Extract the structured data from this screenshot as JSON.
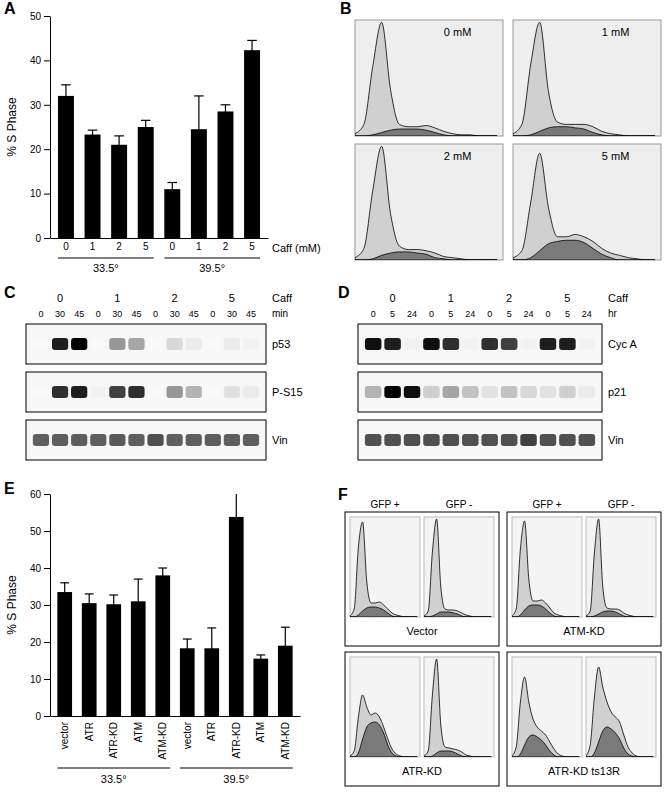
{
  "chart_data": [
    {
      "title": "A",
      "type": "bar",
      "color": "#000000",
      "categories": [
        "0",
        "1",
        "2",
        "5",
        "0",
        "1",
        "2",
        "5"
      ],
      "values": [
        32,
        23.3,
        21,
        25,
        11,
        24.5,
        28.5,
        42.3
      ],
      "errors": [
        2.5,
        1,
        2,
        1.5,
        1.5,
        7.5,
        1.5,
        2.2
      ],
      "group_labels": [
        "33.5°",
        "39.5°"
      ],
      "xlabel": "Caff (mM)",
      "ylabel": "% S Phase",
      "ylim": [
        0,
        50
      ],
      "yticks": [
        0,
        10,
        20,
        30,
        40,
        50
      ]
    },
    {
      "title": "B",
      "type": "area",
      "tick_labels": false,
      "xlim": [
        0,
        100
      ],
      "ylim": [
        0,
        100
      ],
      "x": [
        0,
        6,
        12,
        18,
        24,
        30,
        36,
        42,
        48,
        54,
        60,
        66,
        72,
        78,
        84,
        90,
        96
      ],
      "panels": [
        {
          "label": "0 mM",
          "values": [
            2,
            10,
            60,
            98,
            40,
            10,
            8,
            8,
            9,
            7,
            4,
            2,
            1,
            1,
            0,
            0,
            0
          ],
          "s_phase": [
            0,
            0,
            1,
            3,
            5,
            6,
            6,
            6,
            5,
            3,
            1,
            0,
            0,
            0,
            0,
            0,
            0
          ]
        },
        {
          "label": "1 mM",
          "values": [
            2,
            10,
            62,
            98,
            38,
            12,
            10,
            10,
            10,
            8,
            4,
            2,
            1,
            0,
            0,
            0,
            0
          ],
          "s_phase": [
            0,
            0,
            1,
            4,
            7,
            8,
            8,
            7,
            6,
            3,
            1,
            0,
            0,
            0,
            0,
            0,
            0
          ]
        },
        {
          "label": "2 mM",
          "values": [
            2,
            10,
            60,
            98,
            40,
            12,
            9,
            9,
            8,
            6,
            3,
            2,
            1,
            0,
            0,
            0,
            0
          ],
          "s_phase": [
            0,
            0,
            1,
            4,
            6,
            7,
            7,
            6,
            5,
            2,
            1,
            0,
            0,
            0,
            0,
            0,
            0
          ]
        },
        {
          "label": "5 mM",
          "values": [
            2,
            8,
            50,
            92,
            45,
            20,
            20,
            22,
            20,
            16,
            10,
            6,
            4,
            2,
            1,
            0,
            0
          ],
          "s_phase": [
            0,
            0,
            2,
            8,
            14,
            16,
            17,
            17,
            15,
            10,
            5,
            2,
            0,
            0,
            0,
            0,
            0
          ]
        }
      ]
    },
    {
      "title": "C",
      "type": "blot",
      "treatment_label": "Caff",
      "time_label": "min",
      "groups": [
        "0",
        "1",
        "2",
        "5"
      ],
      "times": [
        0,
        30,
        45
      ],
      "intensity_range": [
        0,
        1
      ],
      "rows": [
        {
          "name": "p53",
          "values": [
            0.05,
            0.9,
            1.0,
            0.05,
            0.5,
            0.45,
            0.05,
            0.25,
            0.15,
            0.05,
            0.15,
            0.1
          ]
        },
        {
          "name": "P-S15",
          "values": [
            0.05,
            0.85,
            0.9,
            0.1,
            0.8,
            0.85,
            0.05,
            0.5,
            0.4,
            0.05,
            0.2,
            0.15
          ]
        },
        {
          "name": "Vin",
          "values": [
            0.7,
            0.7,
            0.7,
            0.7,
            0.72,
            0.7,
            0.75,
            0.7,
            0.7,
            0.7,
            0.7,
            0.7
          ]
        }
      ]
    },
    {
      "title": "D",
      "type": "blot",
      "treatment_label": "Caff",
      "time_label": "hr",
      "groups": [
        "0",
        "1",
        "2",
        "5"
      ],
      "times": [
        0,
        5,
        24
      ],
      "intensity_range": [
        0,
        1
      ],
      "rows": [
        {
          "name": "Cyc A",
          "values": [
            0.95,
            0.9,
            0.1,
            0.95,
            0.85,
            0.1,
            0.85,
            0.8,
            0.1,
            0.9,
            0.9,
            0.1
          ]
        },
        {
          "name": "p21",
          "values": [
            0.4,
            1.0,
            0.95,
            0.3,
            0.45,
            0.35,
            0.2,
            0.35,
            0.25,
            0.2,
            0.3,
            0.15
          ]
        },
        {
          "name": "Vin",
          "values": [
            0.75,
            0.75,
            0.75,
            0.75,
            0.75,
            0.75,
            0.75,
            0.75,
            0.8,
            0.75,
            0.75,
            0.75
          ]
        }
      ]
    },
    {
      "title": "E",
      "type": "bar",
      "color": "#000000",
      "categories": [
        "vector",
        "ATR",
        "ATR-KD",
        "ATM",
        "ATM-KD",
        "vector",
        "ATR",
        "ATR-KD",
        "ATM",
        "ATM-KD"
      ],
      "values": [
        33.5,
        30.5,
        30.2,
        31,
        38,
        18.3,
        18.3,
        53.8,
        15.5,
        19
      ],
      "errors": [
        2.5,
        2.5,
        2.5,
        6,
        2,
        2.5,
        5.5,
        7,
        1,
        5
      ],
      "group_labels": [
        "33.5°",
        "39.5°"
      ],
      "ylabel": "% S Phase",
      "ylim": [
        0,
        60
      ],
      "yticks": [
        0,
        10,
        20,
        30,
        40,
        50,
        60
      ]
    },
    {
      "title": "F",
      "type": "area",
      "tick_labels": false,
      "xlim": [
        0,
        100
      ],
      "ylim": [
        0,
        100
      ],
      "x": [
        0,
        6,
        12,
        18,
        24,
        30,
        36,
        42,
        48,
        54,
        60,
        66,
        72,
        78,
        84,
        90,
        96
      ],
      "columns": [
        "GFP +",
        "GFP -"
      ],
      "panels": [
        {
          "label": "Vector",
          "histograms": [
            {
              "values": [
                1,
                8,
                70,
                95,
                35,
                14,
                14,
                15,
                12,
                8,
                4,
                2,
                1,
                0,
                0,
                0,
                0
              ],
              "s_phase": [
                0,
                0,
                2,
                6,
                9,
                10,
                10,
                9,
                7,
                4,
                1,
                0,
                0,
                0,
                0,
                0,
                0
              ]
            },
            {
              "values": [
                1,
                6,
                65,
                98,
                30,
                8,
                7,
                7,
                6,
                4,
                2,
                1,
                0,
                0,
                0,
                0,
                0
              ],
              "s_phase": [
                0,
                0,
                1,
                3,
                5,
                5,
                5,
                4,
                3,
                1,
                0,
                0,
                0,
                0,
                0,
                0,
                0
              ]
            }
          ]
        },
        {
          "label": "ATM-KD",
          "histograms": [
            {
              "values": [
                1,
                8,
                68,
                96,
                38,
                16,
                16,
                17,
                14,
                9,
                4,
                2,
                1,
                0,
                0,
                0,
                0
              ],
              "s_phase": [
                0,
                0,
                2,
                7,
                11,
                12,
                12,
                11,
                8,
                4,
                1,
                0,
                0,
                0,
                0,
                0,
                0
              ]
            },
            {
              "values": [
                1,
                6,
                64,
                98,
                30,
                9,
                8,
                8,
                7,
                4,
                2,
                1,
                0,
                0,
                0,
                0,
                0
              ],
              "s_phase": [
                0,
                0,
                1,
                3,
                5,
                6,
                6,
                5,
                3,
                1,
                0,
                0,
                0,
                0,
                0,
                0,
                0
              ]
            }
          ]
        },
        {
          "label": "ATR-KD",
          "histograms": [
            {
              "values": [
                1,
                6,
                40,
                62,
                50,
                42,
                44,
                40,
                30,
                18,
                8,
                3,
                1,
                0,
                0,
                0,
                0
              ],
              "s_phase": [
                0,
                0,
                4,
                18,
                30,
                34,
                35,
                32,
                24,
                12,
                4,
                1,
                0,
                0,
                0,
                0,
                0
              ]
            },
            {
              "values": [
                1,
                6,
                62,
                98,
                32,
                10,
                9,
                8,
                7,
                5,
                2,
                1,
                0,
                0,
                0,
                0,
                0
              ],
              "s_phase": [
                0,
                0,
                1,
                4,
                6,
                6,
                6,
                5,
                3,
                1,
                0,
                0,
                0,
                0,
                0,
                0,
                0
              ]
            }
          ]
        },
        {
          "label": "ATR-KD ts13R",
          "histograms": [
            {
              "values": [
                1,
                10,
                55,
                80,
                55,
                38,
                30,
                26,
                22,
                15,
                8,
                3,
                1,
                0,
                0,
                0,
                0
              ],
              "s_phase": [
                0,
                0,
                3,
                12,
                20,
                22,
                20,
                17,
                12,
                6,
                2,
                0,
                0,
                0,
                0,
                0,
                0
              ]
            },
            {
              "values": [
                1,
                12,
                60,
                90,
                70,
                55,
                45,
                40,
                35,
                22,
                10,
                4,
                1,
                0,
                0,
                0,
                0
              ],
              "s_phase": [
                0,
                0,
                4,
                15,
                26,
                30,
                28,
                24,
                18,
                9,
                3,
                1,
                0,
                0,
                0,
                0,
                0
              ]
            }
          ]
        }
      ]
    }
  ]
}
